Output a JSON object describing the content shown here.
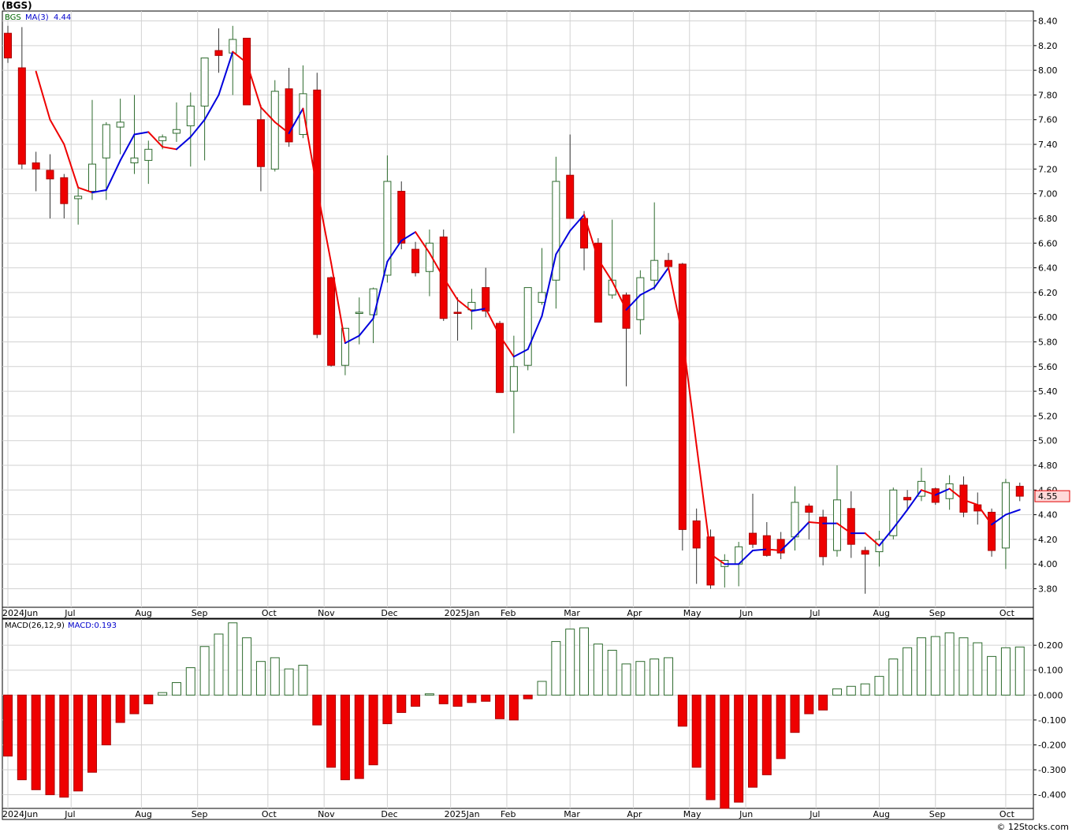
{
  "header": {
    "title": "(BGS)"
  },
  "credit": "© 12Stocks.com",
  "colors": {
    "up_candle": "#2e6b2e",
    "down_candle": "#ee0000",
    "ma_up": "#0000dd",
    "ma_down": "#ee0000",
    "grid": "#d2d2d2",
    "last_price_badge_bg": "#ffd9d9",
    "last_price_badge_border": "#e00000"
  },
  "chart_data": [
    {
      "type": "candlestick",
      "title": "",
      "legend": {
        "symbol": "BGS",
        "ma_label": "MA(3)",
        "ma_value": "4.44"
      },
      "x_labels": [
        "2024Jun",
        "Jul",
        "Aug",
        "Sep",
        "Oct",
        "Nov",
        "Dec",
        "2025Jan",
        "Feb",
        "Mar",
        "Apr",
        "May",
        "Jun",
        "Jul",
        "Aug",
        "Sep",
        "Oct"
      ],
      "x_label_weeks": [
        0,
        4.5,
        9.5,
        13.5,
        18.5,
        22.5,
        27,
        31.5,
        35.5,
        40,
        44.5,
        48.5,
        52.5,
        57.5,
        62,
        66,
        71
      ],
      "y_ticks": [
        "8.40",
        "8.20",
        "8.00",
        "7.80",
        "7.60",
        "7.40",
        "7.20",
        "7.00",
        "6.80",
        "6.60",
        "6.40",
        "6.20",
        "6.00",
        "5.80",
        "5.60",
        "5.40",
        "5.20",
        "5.00",
        "4.80",
        "4.60",
        "4.40",
        "4.20",
        "4.00",
        "3.80"
      ],
      "ylim": [
        3.65,
        8.48
      ],
      "last_price": "4.55",
      "candles": [
        {
          "o": 8.3,
          "h": 8.36,
          "l": 8.06,
          "c": 8.1
        },
        {
          "o": 8.02,
          "h": 8.35,
          "l": 7.2,
          "c": 7.24
        },
        {
          "o": 7.25,
          "h": 7.34,
          "l": 7.02,
          "c": 7.2
        },
        {
          "o": 7.19,
          "h": 7.32,
          "l": 6.8,
          "c": 7.12
        },
        {
          "o": 7.13,
          "h": 7.16,
          "l": 6.8,
          "c": 6.92
        },
        {
          "o": 6.96,
          "h": 7.06,
          "l": 6.75,
          "c": 6.98
        },
        {
          "o": 7.02,
          "h": 7.76,
          "l": 6.95,
          "c": 7.24
        },
        {
          "o": 7.29,
          "h": 7.58,
          "l": 6.95,
          "c": 7.56
        },
        {
          "o": 7.54,
          "h": 7.77,
          "l": 7.32,
          "c": 7.58
        },
        {
          "o": 7.25,
          "h": 7.8,
          "l": 7.16,
          "c": 7.29
        },
        {
          "o": 7.27,
          "h": 7.43,
          "l": 7.08,
          "c": 7.36
        },
        {
          "o": 7.43,
          "h": 7.48,
          "l": 7.36,
          "c": 7.46
        },
        {
          "o": 7.49,
          "h": 7.74,
          "l": 7.42,
          "c": 7.52
        },
        {
          "o": 7.55,
          "h": 7.82,
          "l": 7.22,
          "c": 7.71
        },
        {
          "o": 7.71,
          "h": 8.1,
          "l": 7.27,
          "c": 8.1
        },
        {
          "o": 8.16,
          "h": 8.34,
          "l": 7.98,
          "c": 8.12
        },
        {
          "o": 8.14,
          "h": 8.36,
          "l": 7.8,
          "c": 8.25
        },
        {
          "o": 8.26,
          "h": 8.26,
          "l": 7.74,
          "c": 7.72
        },
        {
          "o": 7.6,
          "h": 7.72,
          "l": 7.02,
          "c": 7.22
        },
        {
          "o": 7.2,
          "h": 7.92,
          "l": 7.18,
          "c": 7.83
        },
        {
          "o": 7.85,
          "h": 8.02,
          "l": 7.38,
          "c": 7.42
        },
        {
          "o": 7.48,
          "h": 8.04,
          "l": 7.45,
          "c": 7.81
        },
        {
          "o": 7.84,
          "h": 7.98,
          "l": 5.83,
          "c": 5.86
        },
        {
          "o": 6.32,
          "h": 6.33,
          "l": 5.6,
          "c": 5.61
        },
        {
          "o": 5.61,
          "h": 5.91,
          "l": 5.53,
          "c": 5.91
        },
        {
          "o": 6.03,
          "h": 6.16,
          "l": 5.78,
          "c": 6.04
        },
        {
          "o": 6.02,
          "h": 6.24,
          "l": 5.79,
          "c": 6.23
        },
        {
          "o": 6.34,
          "h": 7.31,
          "l": 6.28,
          "c": 7.1
        },
        {
          "o": 7.02,
          "h": 7.1,
          "l": 6.55,
          "c": 6.6
        },
        {
          "o": 6.55,
          "h": 6.61,
          "l": 6.33,
          "c": 6.36
        },
        {
          "o": 6.37,
          "h": 6.71,
          "l": 6.17,
          "c": 6.6
        },
        {
          "o": 6.65,
          "h": 6.71,
          "l": 5.97,
          "c": 5.99
        },
        {
          "o": 6.04,
          "h": 6.16,
          "l": 5.81,
          "c": 6.03
        },
        {
          "o": 6.06,
          "h": 6.23,
          "l": 5.9,
          "c": 6.12
        },
        {
          "o": 6.24,
          "h": 6.4,
          "l": 6.0,
          "c": 6.05
        },
        {
          "o": 5.95,
          "h": 5.97,
          "l": 5.39,
          "c": 5.39
        },
        {
          "o": 5.4,
          "h": 5.85,
          "l": 5.06,
          "c": 5.6
        },
        {
          "o": 5.61,
          "h": 6.24,
          "l": 5.57,
          "c": 6.24
        },
        {
          "o": 6.12,
          "h": 6.56,
          "l": 6.1,
          "c": 6.2
        },
        {
          "o": 6.3,
          "h": 7.3,
          "l": 6.07,
          "c": 7.1
        },
        {
          "o": 7.15,
          "h": 7.48,
          "l": 6.8,
          "c": 6.8
        },
        {
          "o": 6.8,
          "h": 6.86,
          "l": 6.38,
          "c": 6.56
        },
        {
          "o": 6.6,
          "h": 6.64,
          "l": 5.96,
          "c": 5.96
        },
        {
          "o": 6.18,
          "h": 6.79,
          "l": 6.15,
          "c": 6.3
        },
        {
          "o": 6.18,
          "h": 6.2,
          "l": 5.44,
          "c": 5.91
        },
        {
          "o": 5.98,
          "h": 6.38,
          "l": 5.86,
          "c": 6.32
        },
        {
          "o": 6.3,
          "h": 6.93,
          "l": 6.22,
          "c": 6.46
        },
        {
          "o": 6.46,
          "h": 6.52,
          "l": 6.39,
          "c": 6.41
        },
        {
          "o": 6.43,
          "h": 6.44,
          "l": 4.11,
          "c": 4.28
        },
        {
          "o": 4.35,
          "h": 4.45,
          "l": 3.84,
          "c": 4.13
        },
        {
          "o": 4.22,
          "h": 4.28,
          "l": 3.8,
          "c": 3.83
        },
        {
          "o": 3.98,
          "h": 4.08,
          "l": 3.81,
          "c": 4.03
        },
        {
          "o": 4.0,
          "h": 4.18,
          "l": 3.82,
          "c": 4.14
        },
        {
          "o": 4.25,
          "h": 4.57,
          "l": 4.13,
          "c": 4.16
        },
        {
          "o": 4.23,
          "h": 4.34,
          "l": 4.06,
          "c": 4.07
        },
        {
          "o": 4.2,
          "h": 4.26,
          "l": 4.04,
          "c": 4.09
        },
        {
          "o": 4.22,
          "h": 4.63,
          "l": 4.11,
          "c": 4.5
        },
        {
          "o": 4.47,
          "h": 4.49,
          "l": 4.2,
          "c": 4.42
        },
        {
          "o": 4.38,
          "h": 4.44,
          "l": 3.99,
          "c": 4.06
        },
        {
          "o": 4.11,
          "h": 4.8,
          "l": 4.06,
          "c": 4.52
        },
        {
          "o": 4.45,
          "h": 4.59,
          "l": 4.05,
          "c": 4.16
        },
        {
          "o": 4.11,
          "h": 4.14,
          "l": 3.76,
          "c": 4.08
        },
        {
          "o": 4.1,
          "h": 4.27,
          "l": 3.98,
          "c": 4.2
        },
        {
          "o": 4.23,
          "h": 4.62,
          "l": 4.2,
          "c": 4.6
        },
        {
          "o": 4.54,
          "h": 4.6,
          "l": 4.44,
          "c": 4.52
        },
        {
          "o": 4.55,
          "h": 4.78,
          "l": 4.51,
          "c": 4.67
        },
        {
          "o": 4.61,
          "h": 4.62,
          "l": 4.48,
          "c": 4.5
        },
        {
          "o": 4.53,
          "h": 4.72,
          "l": 4.44,
          "c": 4.65
        },
        {
          "o": 4.64,
          "h": 4.71,
          "l": 4.38,
          "c": 4.42
        },
        {
          "o": 4.48,
          "h": 4.58,
          "l": 4.32,
          "c": 4.43
        },
        {
          "o": 4.42,
          "h": 4.45,
          "l": 4.06,
          "c": 4.11
        },
        {
          "o": 4.13,
          "h": 4.69,
          "l": 3.96,
          "c": 4.66
        },
        {
          "o": 4.63,
          "h": 4.66,
          "l": 4.51,
          "c": 4.55
        }
      ],
      "ma": [
        null,
        null,
        7.99,
        7.6,
        7.4,
        7.05,
        7.01,
        7.03,
        7.27,
        7.48,
        7.5,
        7.38,
        7.36,
        7.46,
        7.6,
        7.8,
        8.15,
        8.06,
        7.7,
        7.58,
        7.49,
        7.69,
        7.04,
        6.44,
        5.79,
        5.85,
        5.99,
        6.45,
        6.62,
        6.69,
        6.52,
        6.32,
        6.14,
        6.05,
        6.07,
        5.85,
        5.68,
        5.74,
        6.01,
        6.51,
        6.7,
        6.83,
        6.47,
        6.29,
        6.06,
        6.18,
        6.24,
        6.4,
        5.85,
        4.96,
        4.08,
        4.0,
        4.0,
        4.11,
        4.12,
        4.11,
        4.22,
        4.34,
        4.33,
        4.33,
        4.25,
        4.25,
        4.15,
        4.29,
        4.44,
        4.6,
        4.56,
        4.61,
        4.52,
        4.48,
        4.32,
        4.4,
        4.44
      ]
    },
    {
      "type": "bar",
      "title": "",
      "legend": {
        "label": "MACD(26,12,9)",
        "value_label": "MACD:0.193"
      },
      "x_labels": [
        "2024Jun",
        "Jul",
        "Aug",
        "Sep",
        "Oct",
        "Nov",
        "Dec",
        "2025Jan",
        "Feb",
        "Mar",
        "Apr",
        "May",
        "Jun",
        "Jul",
        "Aug",
        "Sep",
        "Oct"
      ],
      "y_ticks": [
        "0.200",
        "0.100",
        "0.000",
        "-0.100",
        "-0.200",
        "-0.300",
        "-0.400"
      ],
      "ylim": [
        -0.455,
        0.305
      ],
      "values": [
        -0.245,
        -0.34,
        -0.38,
        -0.4,
        -0.41,
        -0.385,
        -0.31,
        -0.2,
        -0.11,
        -0.075,
        -0.035,
        0.01,
        0.05,
        0.11,
        0.195,
        0.245,
        0.29,
        0.23,
        0.135,
        0.15,
        0.105,
        0.12,
        -0.12,
        -0.29,
        -0.34,
        -0.335,
        -0.28,
        -0.115,
        -0.07,
        -0.045,
        0.005,
        -0.035,
        -0.045,
        -0.03,
        -0.025,
        -0.095,
        -0.1,
        -0.015,
        0.055,
        0.215,
        0.265,
        0.27,
        0.205,
        0.18,
        0.125,
        0.135,
        0.145,
        0.15,
        -0.125,
        -0.29,
        -0.42,
        -0.455,
        -0.43,
        -0.37,
        -0.32,
        -0.255,
        -0.15,
        -0.075,
        -0.06,
        0.025,
        0.035,
        0.045,
        0.075,
        0.145,
        0.19,
        0.23,
        0.235,
        0.25,
        0.23,
        0.21,
        0.155,
        0.19,
        0.193
      ]
    }
  ]
}
